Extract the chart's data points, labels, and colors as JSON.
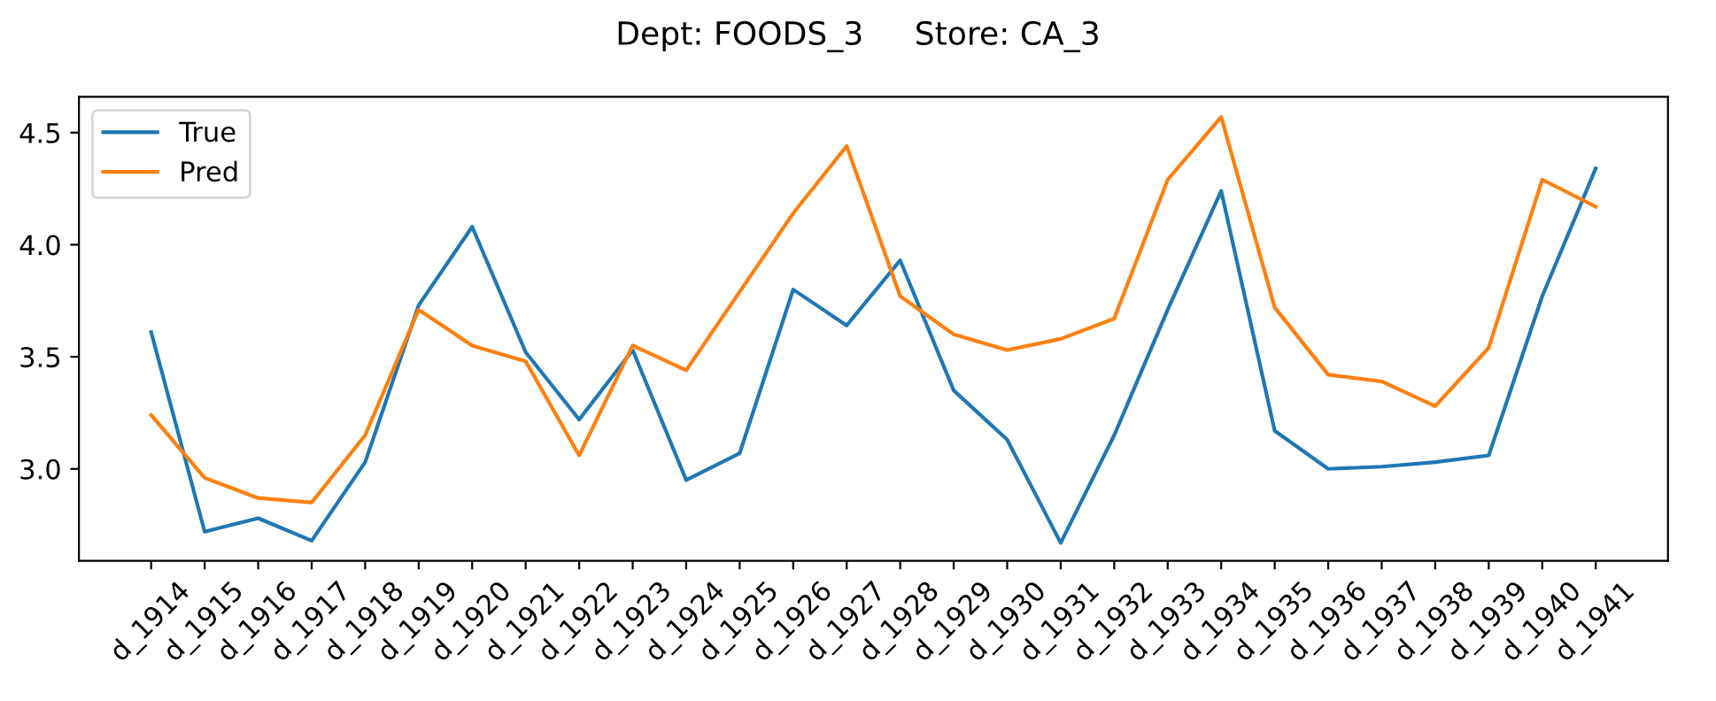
{
  "chart_data": {
    "type": "line",
    "title": "Dept: FOODS_3     Store: CA_3",
    "categories": [
      "d_1914",
      "d_1915",
      "d_1916",
      "d_1917",
      "d_1918",
      "d_1919",
      "d_1920",
      "d_1921",
      "d_1922",
      "d_1923",
      "d_1924",
      "d_1925",
      "d_1926",
      "d_1927",
      "d_1928",
      "d_1929",
      "d_1930",
      "d_1931",
      "d_1932",
      "d_1933",
      "d_1934",
      "d_1935",
      "d_1936",
      "d_1937",
      "d_1938",
      "d_1939",
      "d_1940",
      "d_1941"
    ],
    "series": [
      {
        "name": "True",
        "color": "#1f77b4",
        "values": [
          3.61,
          2.72,
          2.78,
          2.68,
          3.03,
          3.73,
          4.08,
          3.52,
          3.22,
          3.53,
          2.95,
          3.07,
          3.8,
          3.64,
          3.93,
          3.35,
          3.13,
          2.67,
          3.15,
          3.71,
          4.24,
          3.17,
          3.0,
          3.01,
          3.03,
          3.06,
          3.77,
          4.34
        ]
      },
      {
        "name": "Pred",
        "color": "#ff7f0e",
        "values": [
          3.24,
          2.96,
          2.87,
          2.85,
          3.15,
          3.71,
          3.55,
          3.48,
          3.06,
          3.55,
          3.44,
          3.79,
          4.14,
          4.44,
          3.77,
          3.6,
          3.53,
          3.58,
          3.67,
          4.29,
          4.57,
          3.72,
          3.42,
          3.39,
          3.28,
          3.54,
          4.29,
          4.17
        ]
      }
    ],
    "ylim": [
      2.59,
      4.66
    ],
    "yticks": [
      {
        "value": 3.0,
        "label": "3.0"
      },
      {
        "value": 3.5,
        "label": "3.5"
      },
      {
        "value": 4.0,
        "label": "4.0"
      },
      {
        "value": 4.5,
        "label": "4.5"
      }
    ],
    "legend": "top left",
    "grid": false,
    "marker": "none",
    "line_style": "solid"
  }
}
